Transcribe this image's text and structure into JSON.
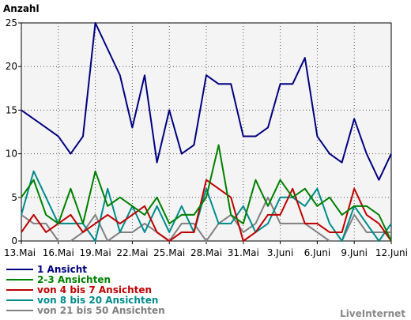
{
  "chart_data": {
    "type": "line",
    "ylabel": "Anzahl",
    "xlabel": "",
    "title": "",
    "ylim": [
      0,
      25
    ],
    "yticks": [
      "0",
      "5",
      "10",
      "15",
      "20",
      "25"
    ],
    "ytick_values": [
      0,
      5,
      10,
      15,
      20,
      25
    ],
    "x": [
      "13.Mai",
      "14.Mai",
      "15.Mai",
      "16.Mai",
      "17.Mai",
      "18.Mai",
      "19.Mai",
      "20.Mai",
      "21.Mai",
      "22.Mai",
      "23.Mai",
      "24.Mai",
      "25.Mai",
      "26.Mai",
      "27.Mai",
      "28.Mai",
      "29.Mai",
      "30.Mai",
      "31.Mai",
      "1.Juni",
      "2.Juni",
      "3.Juni",
      "4.Juni",
      "5.Juni",
      "6.Juni",
      "7.Juni",
      "8.Juni",
      "9.Juni",
      "10.Juni",
      "11.Juni",
      "12.Juni"
    ],
    "xticks": [
      "13.Mai",
      "16.Mai",
      "19.Mai",
      "22.Mai",
      "25.Mai",
      "28.Mai",
      "31.Mai",
      "3.Juni",
      "6.Juni",
      "9.Juni",
      "12.Juni"
    ],
    "xtick_indices": [
      0,
      3,
      6,
      9,
      12,
      15,
      18,
      21,
      24,
      27,
      30
    ],
    "grid": true,
    "legend_position": "bottom-left",
    "series": [
      {
        "name": "1 Ansicht",
        "color": "#000080",
        "values": [
          15,
          14,
          13,
          12,
          10,
          12,
          25,
          22,
          19,
          13,
          19,
          9,
          15,
          10,
          11,
          19,
          18,
          18,
          12,
          12,
          13,
          18,
          18,
          21,
          12,
          10,
          9,
          14,
          10,
          7,
          10
        ]
      },
      {
        "name": "2-3 Ansichten",
        "color": "#008000",
        "values": [
          5,
          7,
          3,
          2,
          6,
          2,
          8,
          4,
          5,
          4,
          3,
          5,
          2,
          3,
          3,
          5,
          11,
          3,
          2,
          7,
          4,
          7,
          5,
          6,
          4,
          5,
          3,
          4,
          4,
          3,
          0
        ]
      },
      {
        "name": "von 4 bis 7 Ansichten",
        "color": "#c00000",
        "values": [
          1,
          3,
          1,
          2,
          3,
          1,
          2,
          3,
          2,
          3,
          4,
          1,
          0,
          1,
          1,
          7,
          6,
          5,
          0,
          1,
          3,
          3,
          6,
          2,
          2,
          1,
          1,
          6,
          3,
          2,
          0
        ]
      },
      {
        "name": "von 8 bis 20 Ansichten",
        "color": "#008b8b",
        "values": [
          3,
          8,
          5,
          2,
          2,
          2,
          0,
          6,
          1,
          4,
          1,
          4,
          1,
          4,
          1,
          6,
          2,
          2,
          4,
          1,
          2,
          5,
          5,
          4,
          6,
          2,
          0,
          4,
          2,
          0,
          2
        ]
      },
      {
        "name": "von 21 bis 50 Ansichten",
        "color": "#808080",
        "values": [
          3,
          2,
          2,
          0,
          0,
          1,
          3,
          0,
          1,
          1,
          2,
          1,
          0,
          2,
          2,
          0,
          2,
          3,
          1,
          2,
          5,
          2,
          2,
          2,
          1,
          0,
          0,
          3,
          1,
          1,
          1
        ]
      }
    ]
  },
  "branding": {
    "label": "LiveInternet"
  }
}
